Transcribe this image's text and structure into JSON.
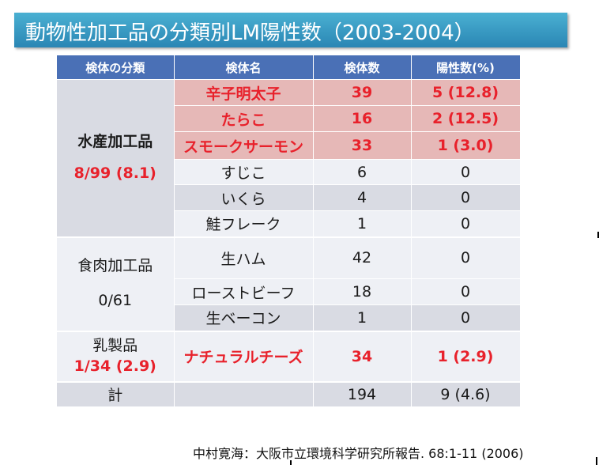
{
  "title": "動物性加工品の分類別LM陽性数（2003-2004）",
  "table": {
    "headers": [
      "検体の分類",
      "検体名",
      "検体数",
      "陽性数(%)"
    ],
    "groups": [
      {
        "category": "水産加工品",
        "category_rate": "8/99 (8.1)",
        "rows": [
          {
            "name": "辛子明太子",
            "count": "39",
            "positive": "5 (12.8)"
          },
          {
            "name": "たらこ",
            "count": "16",
            "positive": "2 (12.5)"
          },
          {
            "name": "スモークサーモン",
            "count": "33",
            "positive": "1 (3.0)"
          },
          {
            "name": "すじこ",
            "count": "6",
            "positive": "0"
          },
          {
            "name": "いくら",
            "count": "4",
            "positive": "0"
          },
          {
            "name": "鮭フレーク",
            "count": "1",
            "positive": "0"
          }
        ]
      },
      {
        "category": "食肉加工品",
        "category_rate": "0/61",
        "rows": [
          {
            "name": "生ハム",
            "count": "42",
            "positive": "0"
          },
          {
            "name": "ローストビーフ",
            "count": "18",
            "positive": "0"
          },
          {
            "name": "生ベーコン",
            "count": "1",
            "positive": "0"
          }
        ]
      },
      {
        "category": "乳製品",
        "category_rate": "1/34 (2.9)",
        "rows": [
          {
            "name": "ナチュラルチーズ",
            "count": "34",
            "positive": "1 (2.9)"
          }
        ]
      }
    ],
    "total": {
      "label": "計",
      "name": "",
      "count": "194",
      "positive": "9 (4.6)"
    }
  },
  "citation": "中村寛海：大阪市立環境科学研究所報告. 68:1-11 (2006)",
  "colors": {
    "title_bar": "#2a86b4",
    "header": "#4a70b6",
    "highlight_row": "#e6b8b7",
    "red_text": "#e8212b"
  }
}
